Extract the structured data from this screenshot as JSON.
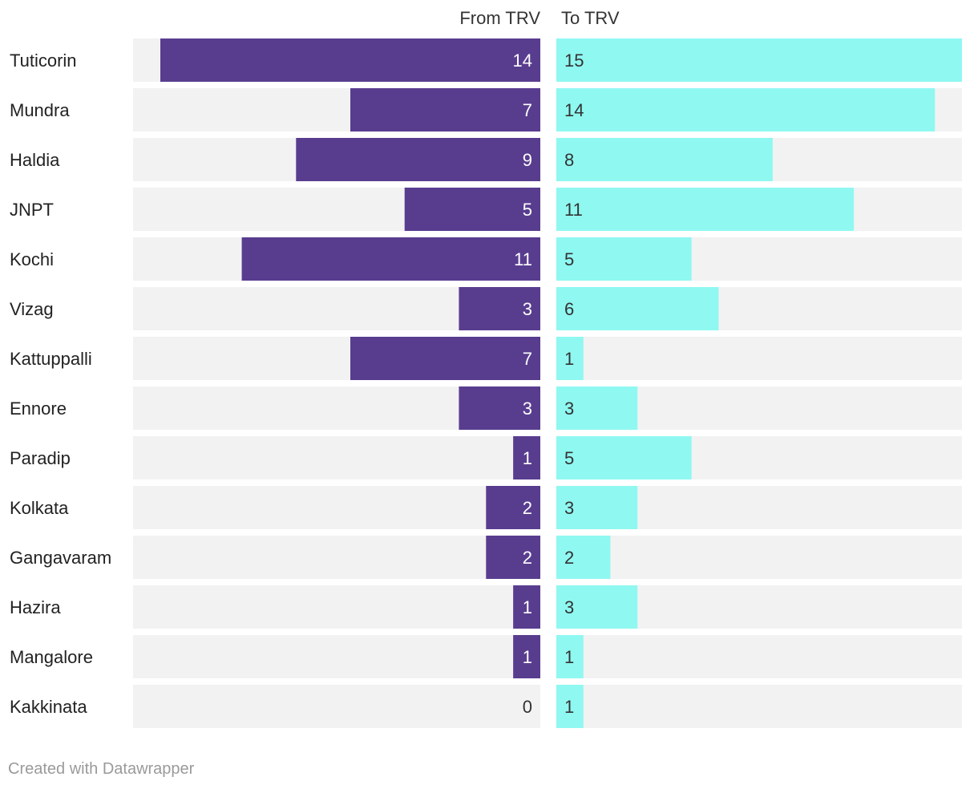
{
  "chart_data": {
    "type": "bar",
    "title": "",
    "xlabel": "",
    "ylabel": "",
    "categories": [
      "Tuticorin",
      "Mundra",
      "Haldia",
      "JNPT",
      "Kochi",
      "Vizag",
      "Kattuppalli",
      "Ennore",
      "Paradip",
      "Kolkata",
      "Gangavaram",
      "Hazira",
      "Mangalore",
      "Kakkinata"
    ],
    "series": [
      {
        "name": "From TRV",
        "values": [
          14,
          7,
          9,
          5,
          11,
          3,
          7,
          3,
          1,
          2,
          2,
          1,
          1,
          0
        ],
        "color": "#583d8f",
        "label_color": "#ffffff"
      },
      {
        "name": "To TRV",
        "values": [
          15,
          14,
          8,
          11,
          5,
          6,
          1,
          3,
          5,
          3,
          2,
          3,
          1,
          1
        ],
        "color": "#8ff8f1",
        "label_color": "#333333"
      }
    ],
    "xlim": [
      0,
      15
    ],
    "background_color": "#f2f2f2"
  },
  "footer": {
    "credit": "Created with Datawrapper"
  }
}
